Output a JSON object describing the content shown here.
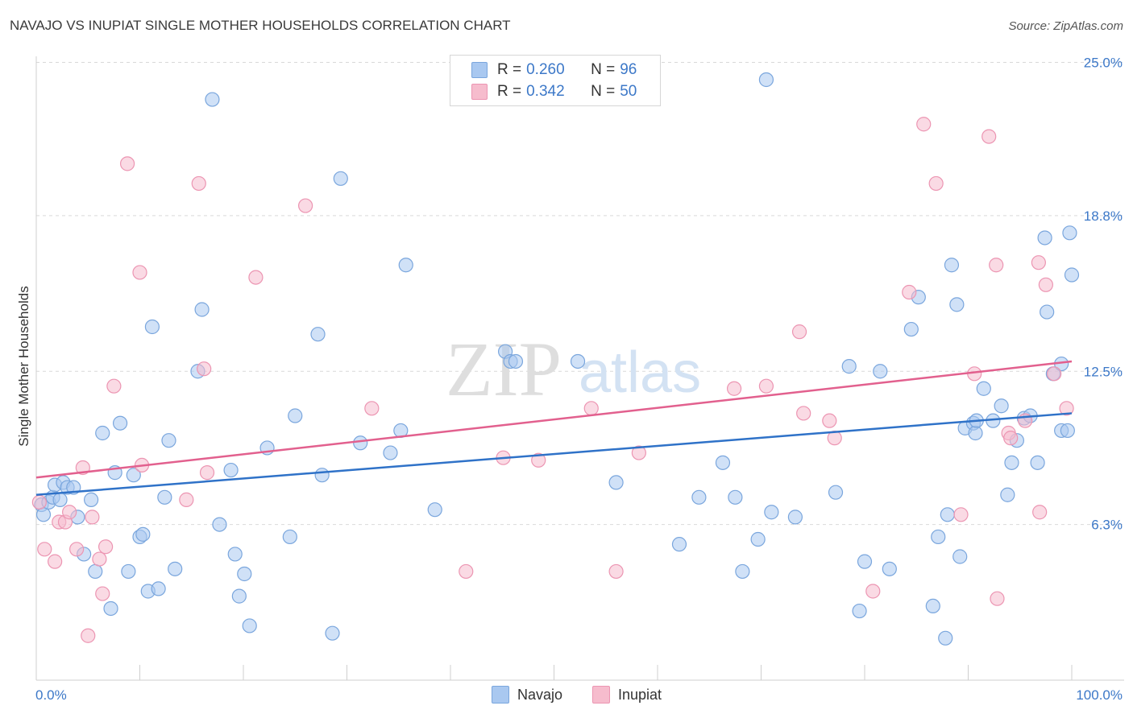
{
  "header": {
    "title": "NAVAJO VS INUPIAT SINGLE MOTHER HOUSEHOLDS CORRELATION CHART",
    "source": "Source: ZipAtlas.com"
  },
  "watermark": {
    "zip": "ZIP",
    "atlas": "atlas"
  },
  "legend": {
    "navajo": {
      "r_label": "R = ",
      "r_value": "0.260",
      "n_label": "N = ",
      "n_value": "96"
    },
    "inupiat": {
      "r_label": "R = ",
      "r_value": "0.342",
      "n_label": "N = ",
      "n_value": "50"
    }
  },
  "colors": {
    "navajo_fill": "#a9c8f0",
    "navajo_stroke": "#7aa6dd",
    "navajo_line": "#2f72c8",
    "inupiat_fill": "#f6bccd",
    "inupiat_stroke": "#ec95b2",
    "inupiat_line": "#e2608e",
    "tick_text": "#3c78c8",
    "grid": "#d9d9d9"
  },
  "chart_data": {
    "type": "scatter",
    "title": "NAVAJO VS INUPIAT SINGLE MOTHER HOUSEHOLDS CORRELATION CHART",
    "xlabel": "",
    "ylabel": "Single Mother Households",
    "xlim": [
      0,
      100
    ],
    "ylim": [
      0,
      26
    ],
    "x_tick_labels": [
      "0.0%",
      "100.0%"
    ],
    "y_ticks": [
      6.3,
      12.5,
      18.8,
      25.0
    ],
    "y_tick_labels": [
      "6.3%",
      "12.5%",
      "18.8%",
      "25.0%"
    ],
    "grid": "dashed horizontal",
    "legend_position": "top-center",
    "series": [
      {
        "name": "Navajo",
        "trend": {
          "x": [
            0,
            100
          ],
          "y": [
            7.5,
            10.8
          ]
        },
        "points": [
          [
            0.5,
            7.1
          ],
          [
            0.7,
            6.7
          ],
          [
            1.2,
            7.2
          ],
          [
            1.6,
            7.4
          ],
          [
            1.8,
            7.9
          ],
          [
            2.3,
            7.3
          ],
          [
            2.6,
            8.0
          ],
          [
            3.0,
            7.8
          ],
          [
            3.6,
            7.8
          ],
          [
            4.0,
            6.6
          ],
          [
            4.6,
            5.1
          ],
          [
            5.3,
            7.3
          ],
          [
            5.7,
            4.4
          ],
          [
            6.4,
            10.0
          ],
          [
            7.2,
            2.9
          ],
          [
            7.6,
            8.4
          ],
          [
            8.1,
            10.4
          ],
          [
            8.9,
            4.4
          ],
          [
            9.4,
            8.3
          ],
          [
            10.0,
            5.8
          ],
          [
            10.3,
            5.9
          ],
          [
            10.8,
            3.6
          ],
          [
            11.2,
            14.3
          ],
          [
            11.8,
            3.7
          ],
          [
            12.4,
            7.4
          ],
          [
            12.8,
            9.7
          ],
          [
            13.4,
            4.5
          ],
          [
            15.6,
            12.5
          ],
          [
            16.0,
            15.0
          ],
          [
            17.0,
            23.5
          ],
          [
            17.7,
            6.3
          ],
          [
            18.8,
            8.5
          ],
          [
            19.2,
            5.1
          ],
          [
            19.6,
            3.4
          ],
          [
            20.1,
            4.3
          ],
          [
            20.6,
            2.2
          ],
          [
            22.3,
            9.4
          ],
          [
            24.5,
            5.8
          ],
          [
            25.0,
            10.7
          ],
          [
            27.2,
            14.0
          ],
          [
            27.6,
            8.3
          ],
          [
            28.6,
            1.9
          ],
          [
            29.4,
            20.3
          ],
          [
            31.3,
            9.6
          ],
          [
            34.2,
            9.2
          ],
          [
            35.2,
            10.1
          ],
          [
            35.7,
            16.8
          ],
          [
            38.5,
            6.9
          ],
          [
            45.3,
            13.3
          ],
          [
            45.8,
            12.9
          ],
          [
            46.3,
            12.9
          ],
          [
            52.3,
            12.9
          ],
          [
            56.0,
            8.0
          ],
          [
            62.1,
            5.5
          ],
          [
            64.0,
            7.4
          ],
          [
            66.3,
            8.8
          ],
          [
            67.5,
            7.4
          ],
          [
            68.2,
            4.4
          ],
          [
            69.7,
            5.7
          ],
          [
            70.5,
            24.3
          ],
          [
            71.0,
            6.8
          ],
          [
            73.3,
            6.6
          ],
          [
            77.2,
            7.6
          ],
          [
            78.5,
            12.7
          ],
          [
            79.5,
            2.8
          ],
          [
            80.0,
            4.8
          ],
          [
            81.5,
            12.5
          ],
          [
            82.4,
            4.5
          ],
          [
            84.5,
            14.2
          ],
          [
            85.2,
            15.5
          ],
          [
            86.6,
            3.0
          ],
          [
            87.1,
            5.8
          ],
          [
            87.8,
            1.7
          ],
          [
            88.4,
            16.8
          ],
          [
            88.0,
            6.7
          ],
          [
            88.9,
            15.2
          ],
          [
            89.2,
            5.0
          ],
          [
            89.7,
            10.2
          ],
          [
            90.5,
            10.4
          ],
          [
            90.7,
            10.0
          ],
          [
            90.8,
            10.5
          ],
          [
            91.5,
            11.8
          ],
          [
            92.4,
            10.5
          ],
          [
            93.2,
            11.1
          ],
          [
            93.8,
            7.5
          ],
          [
            94.2,
            8.8
          ],
          [
            94.7,
            9.7
          ],
          [
            95.4,
            10.6
          ],
          [
            96.0,
            10.7
          ],
          [
            96.7,
            8.8
          ],
          [
            97.4,
            17.9
          ],
          [
            97.6,
            14.9
          ],
          [
            98.2,
            12.4
          ],
          [
            99.0,
            10.1
          ],
          [
            99.6,
            10.1
          ],
          [
            99.0,
            12.8
          ],
          [
            99.8,
            18.1
          ],
          [
            100.0,
            16.4
          ]
        ]
      },
      {
        "name": "Inupiat",
        "trend": {
          "x": [
            0,
            100
          ],
          "y": [
            8.2,
            12.9
          ]
        },
        "points": [
          [
            0.3,
            7.2
          ],
          [
            0.8,
            5.3
          ],
          [
            1.8,
            4.8
          ],
          [
            2.2,
            6.4
          ],
          [
            2.8,
            6.4
          ],
          [
            3.2,
            6.8
          ],
          [
            3.9,
            5.3
          ],
          [
            4.5,
            8.6
          ],
          [
            5.0,
            1.8
          ],
          [
            5.4,
            6.6
          ],
          [
            6.1,
            4.9
          ],
          [
            6.4,
            3.5
          ],
          [
            6.7,
            5.4
          ],
          [
            7.5,
            11.9
          ],
          [
            8.8,
            20.9
          ],
          [
            10.0,
            16.5
          ],
          [
            10.2,
            8.7
          ],
          [
            14.5,
            7.3
          ],
          [
            15.7,
            20.1
          ],
          [
            16.2,
            12.6
          ],
          [
            16.5,
            8.4
          ],
          [
            21.2,
            16.3
          ],
          [
            26.0,
            19.2
          ],
          [
            32.4,
            11.0
          ],
          [
            41.5,
            4.4
          ],
          [
            45.1,
            9.0
          ],
          [
            48.5,
            8.9
          ],
          [
            53.6,
            11.0
          ],
          [
            56.0,
            4.4
          ],
          [
            58.2,
            9.2
          ],
          [
            67.4,
            11.8
          ],
          [
            70.5,
            11.9
          ],
          [
            73.7,
            14.1
          ],
          [
            74.1,
            10.8
          ],
          [
            76.6,
            10.5
          ],
          [
            77.1,
            9.8
          ],
          [
            80.8,
            3.6
          ],
          [
            84.3,
            15.7
          ],
          [
            85.7,
            22.5
          ],
          [
            86.9,
            20.1
          ],
          [
            89.3,
            6.7
          ],
          [
            90.6,
            12.4
          ],
          [
            92.0,
            22.0
          ],
          [
            92.7,
            16.8
          ],
          [
            92.8,
            3.3
          ],
          [
            93.9,
            10.0
          ],
          [
            94.1,
            9.8
          ],
          [
            95.5,
            10.5
          ],
          [
            96.8,
            16.9
          ],
          [
            96.9,
            6.8
          ],
          [
            97.5,
            16.0
          ],
          [
            98.3,
            12.4
          ],
          [
            99.5,
            11.0
          ]
        ]
      }
    ]
  }
}
